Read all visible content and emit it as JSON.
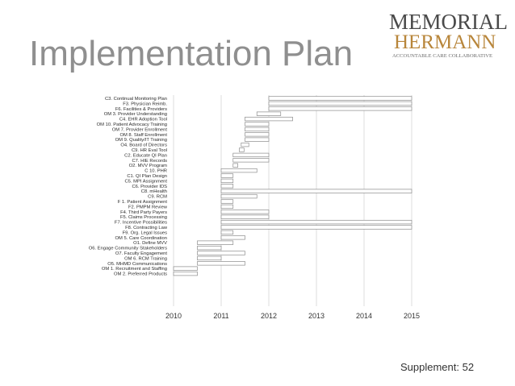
{
  "slide": {
    "title": "Implementation Plan",
    "supplement": "Supplement: 52"
  },
  "logo": {
    "line1": "MEMORIAL",
    "line2": "HERMANN",
    "tagline": "ACCOUNTABLE CARE COLLABORATIVE",
    "colors": {
      "primary": "#4a4a4a",
      "accent": "#b8863b"
    }
  },
  "colors": {
    "bar_fill": "#ffffff",
    "bar_stroke": "#8c8c8c",
    "grid": "#d4d4d4",
    "title": "#8f8f8f"
  },
  "chart_data": {
    "type": "bar",
    "orientation": "horizontal-gantt",
    "xlim": [
      2010,
      2015
    ],
    "x_ticks": [
      "2010",
      "2011",
      "2012",
      "2013",
      "2014",
      "2015"
    ],
    "grid": true,
    "tasks": [
      {
        "label": "C3. Continual Monitoring Plan",
        "start": 2012.0,
        "end": 2015.0
      },
      {
        "label": "F3. Physician Reimb.",
        "start": 2012.0,
        "end": 2015.0
      },
      {
        "label": "F6. Facilities & Providers",
        "start": 2012.0,
        "end": 2015.0
      },
      {
        "label": "OM 3. Provider Understanding",
        "start": 2011.75,
        "end": 2012.25
      },
      {
        "label": "C4. EHR Adoption Tool",
        "start": 2011.5,
        "end": 2012.5
      },
      {
        "label": "OM 10. Patient Advocacy Training",
        "start": 2011.5,
        "end": 2012.0
      },
      {
        "label": "OM 7. Provider Enrollment",
        "start": 2011.5,
        "end": 2012.0
      },
      {
        "label": "OM 8. Staff Enrollment",
        "start": 2011.5,
        "end": 2012.0
      },
      {
        "label": "OM 9. Quality/IT Training",
        "start": 2011.5,
        "end": 2012.0
      },
      {
        "label": "O4. Board of Directors",
        "start": 2011.42,
        "end": 2011.58
      },
      {
        "label": "C9. HR Eval Tool",
        "start": 2011.38,
        "end": 2011.48
      },
      {
        "label": "C2. Educate QI Plan",
        "start": 2011.25,
        "end": 2012.0
      },
      {
        "label": "C7. HIE Records",
        "start": 2011.25,
        "end": 2012.0
      },
      {
        "label": "O2. MVV Program",
        "start": 2011.25,
        "end": 2011.35
      },
      {
        "label": "C 10. PHR",
        "start": 2011.0,
        "end": 2011.75
      },
      {
        "label": "C1. QI Plan Design",
        "start": 2011.0,
        "end": 2011.25
      },
      {
        "label": "C5. MPI Assignment",
        "start": 2011.0,
        "end": 2011.25
      },
      {
        "label": "C6. Provider IDS",
        "start": 2011.0,
        "end": 2011.25
      },
      {
        "label": "C8. mHealth",
        "start": 2011.0,
        "end": 2015.0
      },
      {
        "label": "C9. RCM",
        "start": 2011.0,
        "end": 2011.75
      },
      {
        "label": "F 1. Patient Assignment",
        "start": 2011.0,
        "end": 2011.25
      },
      {
        "label": "F2. PMPM Review",
        "start": 2011.0,
        "end": 2011.25
      },
      {
        "label": "F4. Third Party Payers",
        "start": 2011.0,
        "end": 2012.0
      },
      {
        "label": "F5. Claims Processing",
        "start": 2011.0,
        "end": 2012.0
      },
      {
        "label": "F7. Incentive Possibilities",
        "start": 2011.0,
        "end": 2015.0
      },
      {
        "label": "F8. Contracting Law",
        "start": 2011.0,
        "end": 2015.0
      },
      {
        "label": "F9. Org. Legal Issues",
        "start": 2011.0,
        "end": 2011.25
      },
      {
        "label": "OM 5. Care Coordination",
        "start": 2011.0,
        "end": 2011.5
      },
      {
        "label": "O1. Define MVV",
        "start": 2010.5,
        "end": 2011.25
      },
      {
        "label": "O6. Engage Community Stakeholders",
        "start": 2010.5,
        "end": 2011.0
      },
      {
        "label": "O7. Faculty Engagement",
        "start": 2010.5,
        "end": 2011.5
      },
      {
        "label": "OM 6. RCM Training",
        "start": 2010.5,
        "end": 2011.0
      },
      {
        "label": "O5. MHMD Communications",
        "start": 2010.5,
        "end": 2011.5
      },
      {
        "label": "OM 1. Recruitment and Staffing",
        "start": 2010.0,
        "end": 2010.5
      },
      {
        "label": "OM 2. Preferred Products",
        "start": 2010.0,
        "end": 2010.5
      }
    ]
  }
}
